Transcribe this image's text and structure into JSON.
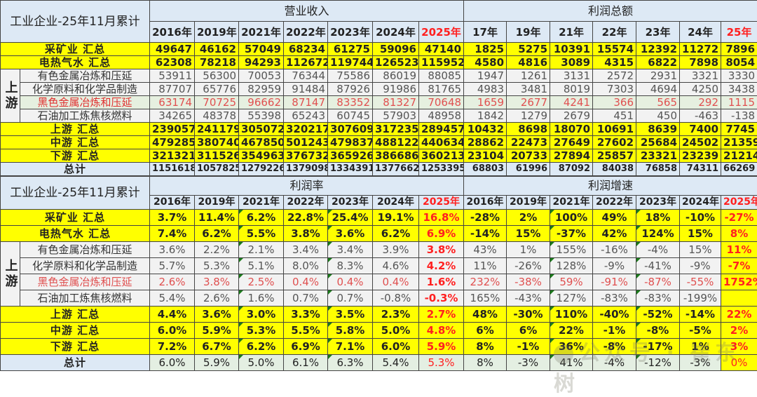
{
  "top_table": {
    "title": "工业企业-25年11月累计",
    "groups": {
      "revenue": "营业收入",
      "profit": "利润总额"
    },
    "revenue_years": [
      "2016年",
      "2019年",
      "2021年",
      "2022年",
      "2023年",
      "2024年",
      "2025年"
    ],
    "profit_years": [
      "17年",
      "19年",
      "21年",
      "22年",
      "23年",
      "24年",
      "25年"
    ],
    "upstream_label": "上游",
    "rows": [
      {
        "label": "采矿业 汇总",
        "type": "summary",
        "revenue": [
          "49647",
          "46162",
          "57049",
          "68234",
          "61275",
          "59096",
          "47140"
        ],
        "profit": [
          "1825",
          "5275",
          "10391",
          "15574",
          "12392",
          "11272",
          "7896"
        ]
      },
      {
        "label": "电热气水 汇总",
        "type": "summary",
        "revenue": [
          "62308",
          "78218",
          "94293",
          "112672",
          "119744",
          "126523",
          "115952"
        ],
        "profit": [
          "4580",
          "4816",
          "3089",
          "4315",
          "6822",
          "7898",
          "8054"
        ]
      },
      {
        "label": "有色金属冶炼和压延",
        "type": "sub",
        "revenue": [
          "53911",
          "56300",
          "70053",
          "76344",
          "75586",
          "86019",
          "88085"
        ],
        "profit": [
          "1947",
          "1261",
          "3131",
          "2572",
          "2931",
          "3321",
          "3330"
        ]
      },
      {
        "label": "化学原料和化学品制造",
        "type": "sub",
        "revenue": [
          "87707",
          "65776",
          "82959",
          "91484",
          "87926",
          "91986",
          "81765"
        ],
        "profit": [
          "4983",
          "3481",
          "8019",
          "7303",
          "4694",
          "4250",
          "3438"
        ]
      },
      {
        "label": "黑色金属冶炼和压延",
        "type": "highlight",
        "revenue": [
          "63174",
          "70725",
          "96662",
          "87147",
          "83352",
          "81327",
          "70648"
        ],
        "profit": [
          "1659",
          "2677",
          "4241",
          "366",
          "565",
          "292",
          "1115"
        ]
      },
      {
        "label": "石油加工炼焦核燃料",
        "type": "sub",
        "revenue": [
          "34265",
          "48378",
          "55398",
          "65243",
          "60745",
          "57903",
          "48958"
        ],
        "profit": [
          "1842",
          "1279",
          "2679",
          "451",
          "450",
          "-463",
          "-138"
        ]
      },
      {
        "label": "上游 汇总",
        "type": "summary",
        "revenue": [
          "239057",
          "241179",
          "305072",
          "320217",
          "307609",
          "317235",
          "289457"
        ],
        "profit": [
          "10432",
          "8698",
          "18070",
          "10691",
          "8639",
          "7400",
          "7745"
        ]
      },
      {
        "label": "中游 汇总",
        "type": "summary",
        "revenue": [
          "479285",
          "380740",
          "467850",
          "501243",
          "479837",
          "488122",
          "440634"
        ],
        "profit": [
          "28862",
          "22473",
          "27649",
          "27602",
          "25684",
          "24502",
          "21359"
        ]
      },
      {
        "label": "下游 汇总",
        "type": "summary",
        "revenue": [
          "321321",
          "311526",
          "354963",
          "376732",
          "365926",
          "386686",
          "360213"
        ],
        "profit": [
          "23104",
          "20733",
          "27894",
          "25857",
          "23321",
          "23239",
          "21214"
        ]
      },
      {
        "label": "总计",
        "type": "total",
        "revenue": [
          "1151618",
          "1057825",
          "1279226",
          "1379098",
          "1334391",
          "1377662",
          "1253395"
        ],
        "profit": [
          "68803",
          "61996",
          "87092",
          "84038",
          "76858",
          "74311",
          "66269"
        ]
      }
    ]
  },
  "bottom_table": {
    "title": "工业企业-25年11月累计",
    "groups": {
      "margin": "利润率",
      "growth": "利润增速"
    },
    "margin_years": [
      "2016年",
      "2019年",
      "2021年",
      "2022年",
      "2023年",
      "2024年",
      "2025年"
    ],
    "growth_years": [
      "2016年",
      "2019年",
      "2021年",
      "2022年",
      "2023年",
      "2024年",
      "2025年"
    ],
    "upstream_label": "上游",
    "rows": [
      {
        "label": "采矿业 汇总",
        "type": "summary",
        "margin": [
          "3.7%",
          "11.4%",
          "6.2%",
          "22.8%",
          "25.4%",
          "19.1%",
          "16.8%"
        ],
        "growth": [
          "-28%",
          "2%",
          "100%",
          "49%",
          "18%",
          "-10%",
          "-27%"
        ]
      },
      {
        "label": "电热气水 汇总",
        "type": "summary",
        "margin": [
          "7.4%",
          "6.2%",
          "5.5%",
          "3.8%",
          "3.6%",
          "6.2%",
          "6.9%"
        ],
        "growth": [
          "-14%",
          "15%",
          "-37%",
          "42%",
          "124%",
          "15%",
          "8%"
        ]
      },
      {
        "label": "有色金属冶炼和压延",
        "type": "sub",
        "margin": [
          "3.6%",
          "2.2%",
          "2.1%",
          "3.4%",
          "3.4%",
          "3.9%",
          "3.8%"
        ],
        "growth": [
          "43%",
          "1%",
          "155%",
          "-16%",
          "-4%",
          "15%",
          "11%"
        ]
      },
      {
        "label": "化学原料和化学品制造",
        "type": "sub",
        "margin": [
          "5.7%",
          "5.3%",
          "5.1%",
          "8.0%",
          "8.3%",
          "4.6%",
          "4.2%"
        ],
        "growth": [
          "11%",
          "-26%",
          "128%",
          "-9%",
          "-41%",
          "-9%",
          "-7%"
        ]
      },
      {
        "label": "黑色金属冶炼和压延",
        "type": "highlight",
        "margin": [
          "2.6%",
          "3.8%",
          "2.5%",
          "0.4%",
          "0.4%",
          "0.4%",
          "1.6%"
        ],
        "growth": [
          "232%",
          "-38%",
          "59%",
          "-91%",
          "-87%",
          "-55%",
          "1752%"
        ]
      },
      {
        "label": "石油加工炼焦核燃料",
        "type": "sub",
        "margin": [
          "5.4%",
          "2.6%",
          "1.6%",
          "0.7%",
          "0.7%",
          "-0.8%",
          "-0.3%"
        ],
        "growth": [
          "165%",
          "-43%",
          "127%",
          "-83%",
          "-83%",
          "-199%",
          ""
        ]
      },
      {
        "label": "上游 汇总",
        "type": "summary",
        "margin": [
          "4.4%",
          "3.6%",
          "3.0%",
          "3.3%",
          "3.5%",
          "2.3%",
          "2.7%"
        ],
        "growth": [
          "48%",
          "-30%",
          "110%",
          "-40%",
          "-52%",
          "-14%",
          "22%"
        ]
      },
      {
        "label": "中游 汇总",
        "type": "summary",
        "margin": [
          "6.0%",
          "5.9%",
          "5.3%",
          "5.5%",
          "5.8%",
          "5.0%",
          "4.8%"
        ],
        "growth": [
          "6%",
          "6%",
          "22%",
          "-1%",
          "-8%",
          "-5%",
          "2%"
        ]
      },
      {
        "label": "下游 汇总",
        "type": "summary",
        "margin": [
          "7.2%",
          "6.7%",
          "6.2%",
          "6.9%",
          "7.1%",
          "6.0%",
          "5.9%"
        ],
        "growth": [
          "8%",
          "-1%",
          "36%",
          "-8%",
          "-17%",
          "1%",
          "3%"
        ]
      },
      {
        "label": "总计",
        "type": "total",
        "margin": [
          "6.0%",
          "5.9%",
          "5.0%",
          "6.1%",
          "6.3%",
          "5.4%",
          "5.3%"
        ],
        "growth": [
          "8%",
          "-3%",
          "41%",
          "-4%",
          "-12%",
          "-3%",
          "0%"
        ]
      }
    ]
  },
  "watermark": "公众号 · 崔东树",
  "colors": {
    "summary_bg": "#ffff00",
    "header_bg": "#dde9f5",
    "highlight_text": "#e05050",
    "accent_2025": "#ff2020"
  }
}
